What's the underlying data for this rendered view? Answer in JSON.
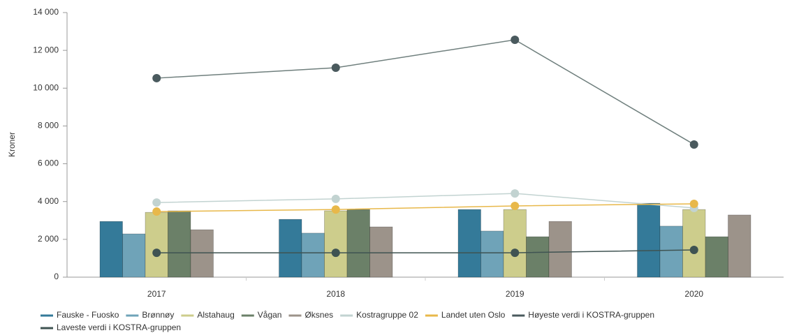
{
  "chart_data": {
    "type": "bar",
    "y_label": "Kroner",
    "categories": [
      "2017",
      "2018",
      "2019",
      "2020"
    ],
    "ylim": [
      0,
      14000
    ],
    "yticks": [
      0,
      {
        "value": 2000,
        "label": "2 000"
      },
      {
        "value": 4000,
        "label": "4 000"
      },
      {
        "value": 6000,
        "label": "6 000"
      },
      {
        "value": 8000,
        "label": "8 000"
      },
      {
        "value": 10000,
        "label": "10 000"
      },
      {
        "value": 12000,
        "label": "12 000"
      },
      {
        "value": 14000,
        "label": "14 000"
      }
    ],
    "series": [
      {
        "name": "Fauske - Fuosko",
        "type": "bar",
        "color": "#347a99",
        "values": [
          2950,
          3060,
          3580,
          3910
        ]
      },
      {
        "name": "Brønnøy",
        "type": "bar",
        "color": "#6fa3b8",
        "values": [
          2290,
          2330,
          2440,
          2700
        ]
      },
      {
        "name": "Alstahaug",
        "type": "bar",
        "color": "#cdcd8c",
        "values": [
          3430,
          3510,
          3580,
          3580
        ]
      },
      {
        "name": "Vågan",
        "type": "bar",
        "color": "#6b8068",
        "values": [
          3510,
          3580,
          2140,
          2140
        ]
      },
      {
        "name": "Øksnes",
        "type": "bar",
        "color": "#9c938a",
        "values": [
          2510,
          2660,
          2950,
          3290
        ]
      },
      {
        "name": "Kostragruppe 02",
        "type": "line",
        "color": "#c2d3d1",
        "values": [
          3950,
          4140,
          4430,
          3660
        ]
      },
      {
        "name": "Landet uten Oslo",
        "type": "line",
        "color": "#e8b84a",
        "values": [
          3470,
          3580,
          3770,
          3880
        ]
      },
      {
        "name": "Høyeste verdi i KOSTRA-gruppen",
        "type": "line",
        "color": "#4a5a5e",
        "values": [
          10530,
          11080,
          12560,
          7020
        ]
      },
      {
        "name": "Laveste verdi i KOSTRA-gruppen",
        "type": "line",
        "color": "#3f5352",
        "values": [
          1290,
          1290,
          1290,
          1440
        ]
      }
    ]
  }
}
